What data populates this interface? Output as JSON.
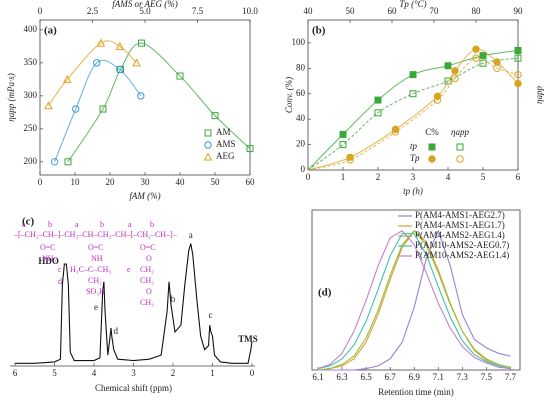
{
  "chart_data": [
    {
      "type": "scatter",
      "panel_label": "(a)",
      "xlabel": "fAM (%)",
      "x2label": "fAMS or AEG (%)",
      "ylabel": "ηapp (mPa·s)",
      "xlim": [
        0,
        60
      ],
      "xticks": [
        0,
        10,
        20,
        30,
        40,
        50,
        60
      ],
      "x2lim": [
        0,
        10
      ],
      "x2ticks": [
        0,
        2.5,
        {
          "value": 5,
          "label": "5.0"
        },
        7.5,
        {
          "value": 10,
          "label": "10.0"
        }
      ],
      "ylim": [
        180,
        415
      ],
      "yticks": [
        200,
        250,
        300,
        350,
        400
      ],
      "legend": "lower right",
      "series": [
        {
          "name": "AM",
          "color": "#3aa83a",
          "marker": "square",
          "x": [
            8,
            18,
            23,
            29,
            40,
            50,
            60
          ],
          "values": [
            200,
            280,
            340,
            380,
            330,
            270,
            220
          ]
        },
        {
          "name": "AMS",
          "color": "#3a9ad9",
          "marker": "circle",
          "axis": "x2",
          "x": [
            0.7,
            1.7,
            2.7,
            3.8,
            4.8
          ],
          "values": [
            200,
            280,
            350,
            340,
            300
          ]
        },
        {
          "name": "AEG",
          "color": "#e6a020",
          "marker": "triangle",
          "axis": "x2",
          "x": [
            0.4,
            1.3,
            2.9,
            3.8,
            4.6
          ],
          "values": [
            285,
            325,
            380,
            375,
            350
          ]
        }
      ]
    },
    {
      "type": "scatter",
      "panel_label": "(b)",
      "xlabel": "tp (h)",
      "x2label": "Tp (°C)",
      "ylabel": "Conv. (%)",
      "y2label": "ηapp",
      "xlim": [
        0,
        6
      ],
      "xticks": [
        0,
        1,
        2,
        3,
        4,
        5,
        6
      ],
      "x2lim": [
        40,
        90
      ],
      "x2ticks": [
        40,
        50,
        60,
        70,
        80,
        90
      ],
      "ylim": [
        0,
        118
      ],
      "yticks": [
        0,
        20,
        40,
        60,
        80,
        100
      ],
      "legend_headers": [
        "C%",
        "ηapp"
      ],
      "legend_rows": [
        "tp",
        "Tp"
      ],
      "series": [
        {
          "color": "#3aa83a",
          "marker": "square",
          "filled": true,
          "dashed": false,
          "row": 0,
          "column": 0,
          "x": [
            1,
            2,
            3,
            4,
            5,
            6
          ],
          "values": [
            28,
            55,
            75,
            82,
            90,
            94
          ]
        },
        {
          "color": "#3aa83a",
          "marker": "square",
          "filled": false,
          "dashed": true,
          "row": 0,
          "column": 1,
          "x": [
            1,
            2,
            3,
            4,
            5,
            6
          ],
          "values": [
            20,
            45,
            60,
            70,
            84,
            88
          ]
        },
        {
          "color": "#d9a520",
          "marker": "circle",
          "filled": true,
          "dashed": false,
          "row": 1,
          "column": 0,
          "x": [
            1.2,
            2.5,
            3.7,
            4.2,
            4.8,
            5.4,
            6
          ],
          "values": [
            10,
            32,
            58,
            78,
            95,
            85,
            68
          ]
        },
        {
          "color": "#d9a520",
          "marker": "circle",
          "filled": false,
          "dashed": true,
          "row": 1,
          "column": 1,
          "x": [
            1.2,
            2.5,
            3.7,
            4.2,
            4.8,
            5.4,
            6
          ],
          "values": [
            8,
            30,
            55,
            72,
            88,
            80,
            75
          ]
        }
      ]
    },
    {
      "type": "line",
      "panel_label": "(c)",
      "xlabel": "Chemical shift (ppm)",
      "color": "#111",
      "xlim": [
        6,
        0
      ],
      "xticks": [
        6,
        5,
        4,
        3,
        2,
        1,
        0
      ],
      "ylim": [
        0,
        100
      ],
      "x": [
        6.0,
        5.5,
        5.0,
        4.85,
        4.8,
        4.75,
        4.7,
        4.65,
        4.6,
        4.5,
        4.0,
        3.85,
        3.78,
        3.75,
        3.72,
        3.65,
        3.6,
        3.57,
        3.55,
        3.5,
        3.4,
        3.0,
        2.6,
        2.3,
        2.15,
        2.1,
        2.05,
        1.95,
        1.8,
        1.7,
        1.6,
        1.55,
        1.5,
        1.4,
        1.3,
        1.2,
        1.1,
        1.07,
        1.04,
        1.0,
        0.95,
        0.8,
        0.5,
        0.1,
        0.03,
        0
      ],
      "values": [
        2,
        2,
        3,
        5,
        60,
        75,
        75,
        60,
        10,
        4,
        4,
        6,
        55,
        62,
        40,
        8,
        20,
        28,
        22,
        12,
        5,
        4,
        5,
        8,
        40,
        62,
        45,
        25,
        30,
        60,
        85,
        90,
        82,
        50,
        22,
        12,
        15,
        30,
        25,
        22,
        8,
        3,
        2,
        2,
        12,
        18
      ],
      "peak_labels": [
        "HDO",
        "e",
        "d",
        "b",
        "a",
        "c",
        "TMS"
      ],
      "structure": [
        "a",
        "b",
        "a",
        "b",
        "a",
        "b",
        "–[–CH₂–CH–]–CH₂–CH–CH₂–CH–[–CH₂–CH–]–",
        "O=C",
        "NH₂",
        "O=C",
        "NH",
        "H₃C–C–CH₃",
        "CH₂",
        "SO₃H",
        "O=C",
        "O",
        "CH₂",
        "CH₂",
        "O",
        "CH₃",
        "c",
        "d",
        "e"
      ]
    },
    {
      "type": "line",
      "panel_label": "(d)",
      "xlabel": "Retention time (min)",
      "xlim": [
        6.05,
        7.78
      ],
      "xticks": [
        6.1,
        6.3,
        6.5,
        6.7,
        6.9,
        7.1,
        7.3,
        7.5,
        7.7
      ],
      "ylim": [
        0,
        115
      ],
      "legend": "upper right",
      "x": [
        6.1,
        6.2,
        6.3,
        6.4,
        6.5,
        6.6,
        6.7,
        6.8,
        6.9,
        7.0,
        7.1,
        7.2,
        7.3,
        7.4,
        7.5,
        7.6,
        7.7
      ],
      "series": [
        {
          "name": "P(AM4-AMS1-AEG2.7)",
          "color": "#9b7fd4",
          "values": [
            0,
            0,
            0,
            0,
            1,
            3,
            8,
            20,
            45,
            80,
            100,
            75,
            40,
            22,
            16,
            12,
            10
          ]
        },
        {
          "name": "P(AM4-AMS1-AEG1.7)",
          "color": "#e0a030",
          "values": [
            0,
            1,
            3,
            8,
            20,
            40,
            65,
            88,
            100,
            92,
            72,
            48,
            28,
            14,
            7,
            3,
            1
          ]
        },
        {
          "name": "P(AM4-AMS2-AEG1.4)",
          "color": "#90c040",
          "values": [
            0,
            1,
            4,
            10,
            23,
            43,
            68,
            90,
            100,
            90,
            70,
            47,
            28,
            15,
            8,
            4,
            2
          ]
        },
        {
          "name": "P(AM10-AMS2-AEG0.7)",
          "color": "#40c0b0",
          "values": [
            1,
            3,
            8,
            18,
            35,
            58,
            82,
            98,
            98,
            83,
            60,
            38,
            21,
            11,
            6,
            3,
            1
          ]
        },
        {
          "name": "P(AM10-AMS2-AEG1.4)",
          "color": "#c080d0",
          "values": [
            1,
            4,
            12,
            28,
            50,
            75,
            95,
            100,
            90,
            70,
            48,
            30,
            17,
            9,
            5,
            2,
            1
          ]
        }
      ]
    }
  ]
}
